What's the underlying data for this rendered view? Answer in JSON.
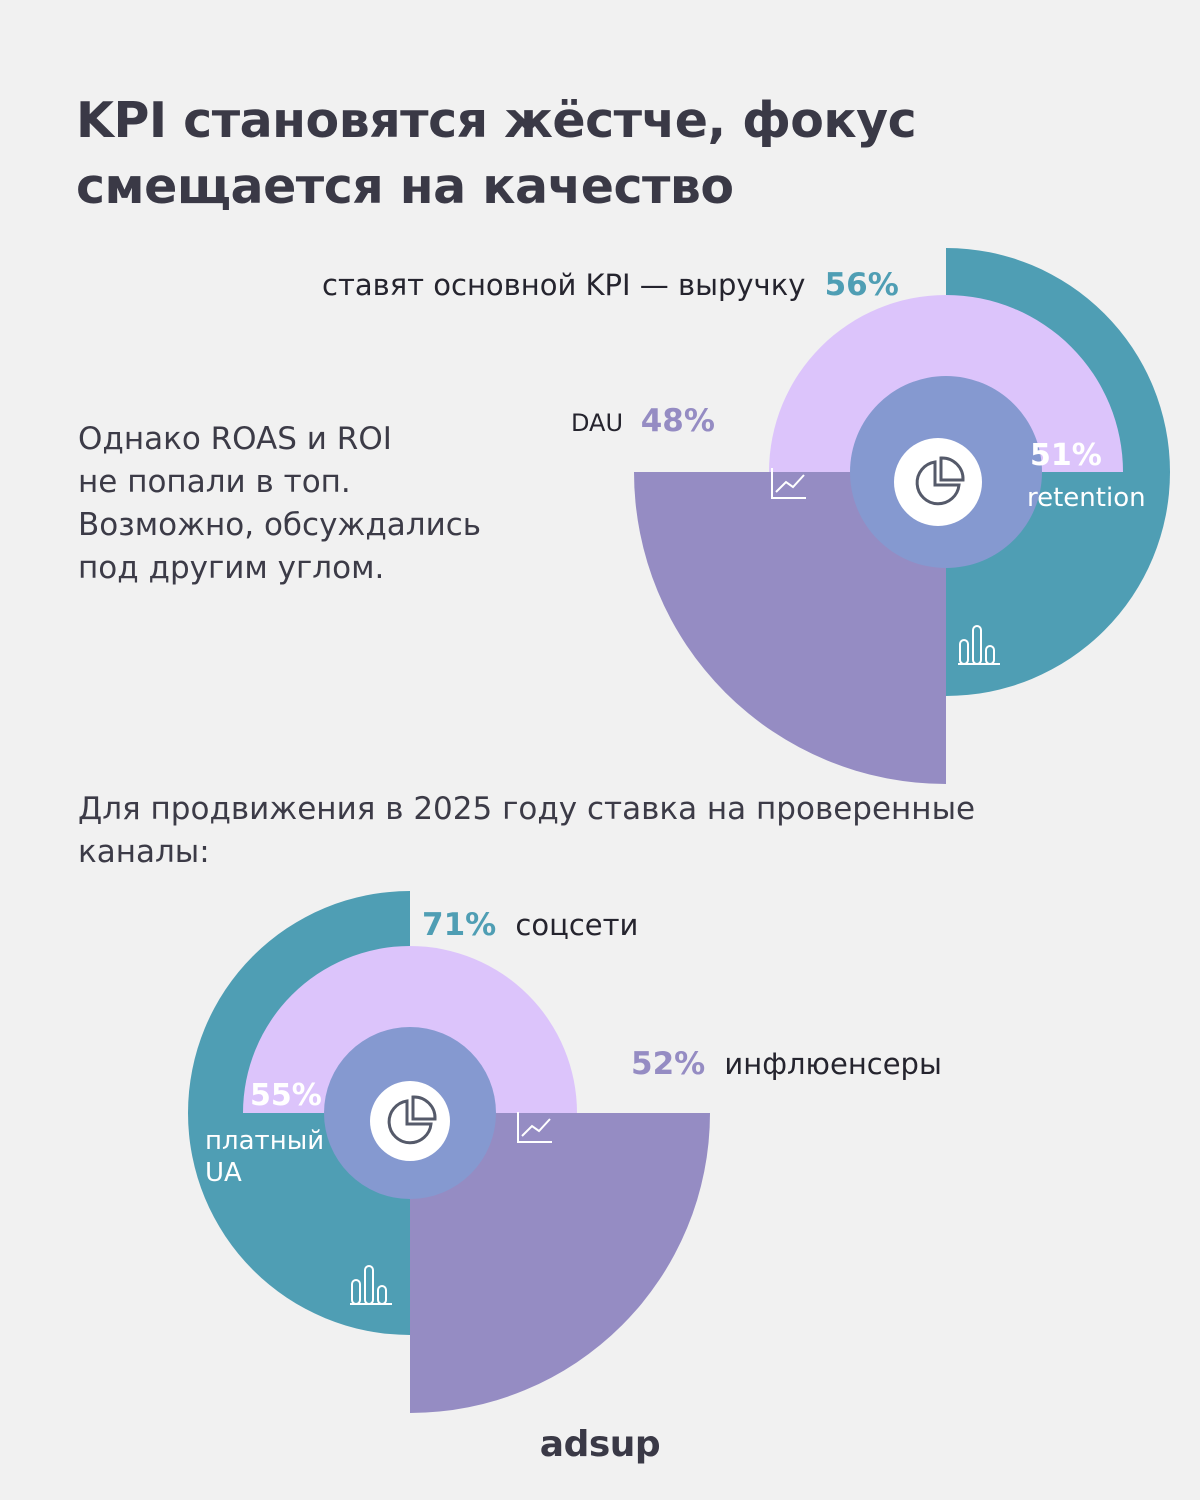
{
  "title": {
    "line1": "KPI становятся жёстче, фокус",
    "line2": "смещается на качество"
  },
  "paragraph1": {
    "line1": "Однако ROAS и ROI",
    "line2": "не попали в топ.",
    "line3": "Возможно, обсуждались",
    "line4": "под другим углом."
  },
  "paragraph2": {
    "line1": "Для продвижения в 2025 году ставка на проверенные",
    "line2": "каналы:"
  },
  "brand": "adsup",
  "colors": {
    "teal": "#4f9eb4",
    "lavender": "#dcc4fb",
    "purple": "#958cc3",
    "center": "#8599d0",
    "background": "#f1f1f1"
  },
  "chart_data": [
    {
      "type": "radial-bar",
      "series": [
        {
          "label": "ставят основной KPI — выручку",
          "value": 56,
          "value_label": "56%",
          "color": "#4f9eb4",
          "icon": "bar-chart-icon"
        },
        {
          "label": "retention",
          "value": 51,
          "value_label": "51%",
          "color": "#dcc4fb",
          "icon": "none"
        },
        {
          "label": "DAU",
          "value": 48,
          "value_label": "48%",
          "color": "#958cc3",
          "icon": "line-chart-icon"
        }
      ],
      "center_icon": "pie-chart-icon"
    },
    {
      "type": "radial-bar",
      "series": [
        {
          "label": "соцсети",
          "value": 71,
          "value_label": "71%",
          "color": "#4f9eb4",
          "icon": "bar-chart-icon"
        },
        {
          "label": "платный UA",
          "value": 55,
          "value_label": "55%",
          "color": "#dcc4fb",
          "icon": "none"
        },
        {
          "label": "инфлюенсеры",
          "value": 52,
          "value_label": "52%",
          "color": "#958cc3",
          "icon": "line-chart-icon"
        }
      ],
      "center_icon": "pie-chart-icon"
    }
  ]
}
